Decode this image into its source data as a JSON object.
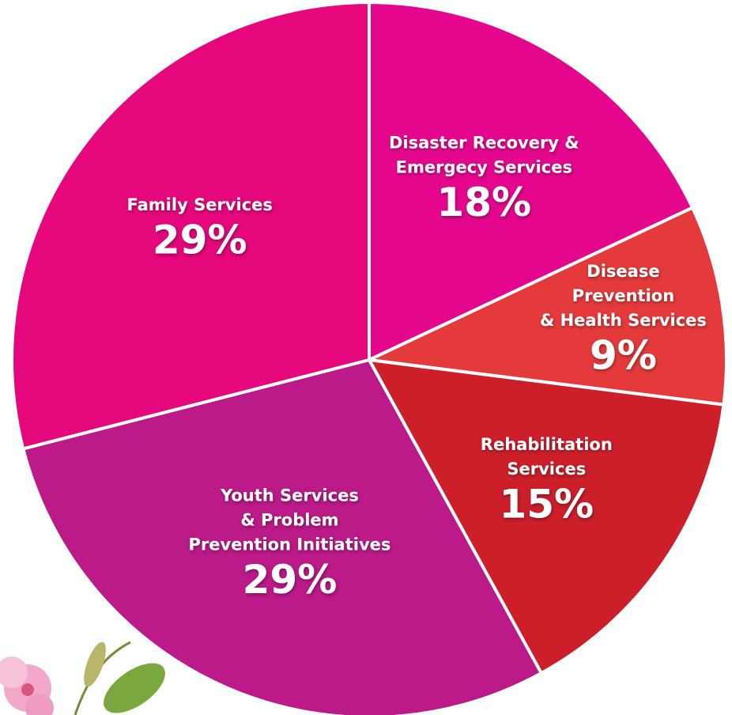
{
  "chart_data": {
    "type": "pie",
    "categories": [
      [
        "Disaster Recovery &",
        "Emergecy Services"
      ],
      [
        "Disease",
        "Prevention",
        "& Health Services"
      ],
      [
        "Rehabilitation",
        "Services"
      ],
      [
        "Youth Services",
        "& Problem",
        "Prevention Initiatives"
      ],
      [
        "Family Services"
      ]
    ],
    "values": [
      18,
      9,
      15,
      29,
      29
    ],
    "value_labels": [
      "18%",
      "9%",
      "15%",
      "29%",
      "29%"
    ],
    "colors": [
      "#e4078e",
      "#e43a3b",
      "#cc1f2a",
      "#bb1a88",
      "#e5077b"
    ]
  }
}
